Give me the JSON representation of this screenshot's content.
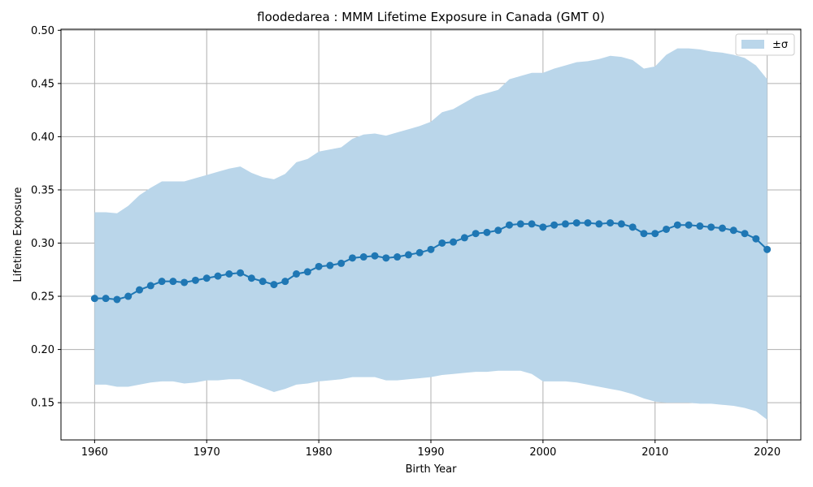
{
  "chart_data": {
    "type": "line",
    "title": "floodedarea : MMM Lifetime Exposure in Canada (GMT 0)",
    "xlabel": "Birth Year",
    "ylabel": "Lifetime Exposure",
    "xlim": [
      1957,
      2023
    ],
    "ylim": [
      0.115,
      0.501
    ],
    "xticks": [
      1960,
      1970,
      1980,
      1990,
      2000,
      2010,
      2020
    ],
    "yticks": [
      0.15,
      0.2,
      0.25,
      0.3,
      0.35,
      0.4,
      0.45,
      0.5
    ],
    "ytick_labels": [
      "0.15",
      "0.20",
      "0.25",
      "0.30",
      "0.35",
      "0.40",
      "0.45",
      "0.50"
    ],
    "grid": true,
    "legend": {
      "position": "top-right",
      "entries": [
        "±σ"
      ]
    },
    "colors": {
      "line": "#1f77b4",
      "band": "#bad6ea"
    },
    "x": [
      1960,
      1961,
      1962,
      1963,
      1964,
      1965,
      1966,
      1967,
      1968,
      1969,
      1970,
      1971,
      1972,
      1973,
      1974,
      1975,
      1976,
      1977,
      1978,
      1979,
      1980,
      1981,
      1982,
      1983,
      1984,
      1985,
      1986,
      1987,
      1988,
      1989,
      1990,
      1991,
      1992,
      1993,
      1994,
      1995,
      1996,
      1997,
      1998,
      1999,
      2000,
      2001,
      2002,
      2003,
      2004,
      2005,
      2006,
      2007,
      2008,
      2009,
      2010,
      2011,
      2012,
      2013,
      2014,
      2015,
      2016,
      2017,
      2018,
      2019,
      2020
    ],
    "series": [
      {
        "values": [
          0.248,
          0.248,
          0.247,
          0.25,
          0.256,
          0.26,
          0.264,
          0.264,
          0.263,
          0.265,
          0.267,
          0.269,
          0.271,
          0.272,
          0.267,
          0.264,
          0.261,
          0.264,
          0.271,
          0.273,
          0.278,
          0.279,
          0.281,
          0.286,
          0.287,
          0.288,
          0.286,
          0.287,
          0.289,
          0.291,
          0.294,
          0.3,
          0.301,
          0.305,
          0.309,
          0.31,
          0.312,
          0.317,
          0.318,
          0.318,
          0.315,
          0.317,
          0.318,
          0.319,
          0.319,
          0.318,
          0.319,
          0.318,
          0.315,
          0.309,
          0.309,
          0.313,
          0.317,
          0.317,
          0.316,
          0.315,
          0.314,
          0.312,
          0.309,
          0.304,
          0.294
        ]
      }
    ],
    "band": {
      "name": "±σ",
      "upper": [
        0.329,
        0.329,
        0.328,
        0.335,
        0.345,
        0.352,
        0.358,
        0.358,
        0.358,
        0.361,
        0.364,
        0.367,
        0.37,
        0.372,
        0.366,
        0.362,
        0.36,
        0.365,
        0.376,
        0.379,
        0.386,
        0.388,
        0.39,
        0.398,
        0.402,
        0.403,
        0.401,
        0.404,
        0.407,
        0.41,
        0.414,
        0.423,
        0.426,
        0.432,
        0.438,
        0.441,
        0.444,
        0.454,
        0.457,
        0.46,
        0.46,
        0.464,
        0.467,
        0.47,
        0.471,
        0.473,
        0.476,
        0.475,
        0.472,
        0.464,
        0.466,
        0.477,
        0.483,
        0.483,
        0.482,
        0.48,
        0.479,
        0.477,
        0.474,
        0.467,
        0.454
      ],
      "lower": [
        0.167,
        0.167,
        0.165,
        0.165,
        0.167,
        0.169,
        0.17,
        0.17,
        0.168,
        0.169,
        0.171,
        0.171,
        0.172,
        0.172,
        0.168,
        0.164,
        0.16,
        0.163,
        0.167,
        0.168,
        0.17,
        0.171,
        0.172,
        0.174,
        0.174,
        0.174,
        0.171,
        0.171,
        0.172,
        0.173,
        0.174,
        0.176,
        0.177,
        0.178,
        0.179,
        0.179,
        0.18,
        0.18,
        0.18,
        0.177,
        0.17,
        0.17,
        0.17,
        0.169,
        0.167,
        0.165,
        0.163,
        0.161,
        0.158,
        0.154,
        0.151,
        0.15,
        0.15,
        0.15,
        0.149,
        0.149,
        0.148,
        0.147,
        0.145,
        0.142,
        0.134
      ]
    }
  }
}
